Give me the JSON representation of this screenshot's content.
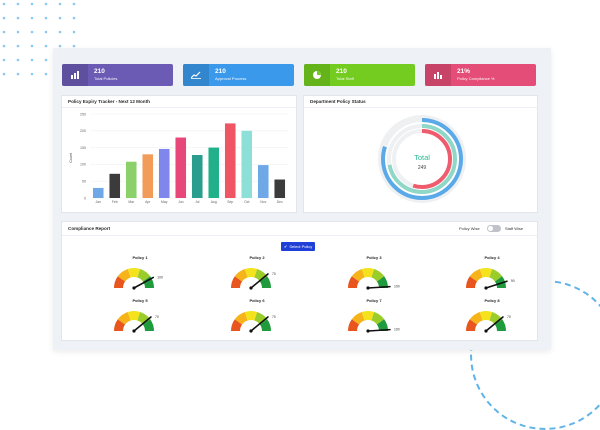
{
  "stats": [
    {
      "value": "210",
      "label": "Total Policies",
      "color": "#6b5bb5",
      "icon": "bar-chart-icon"
    },
    {
      "value": "210",
      "label": "Approval Process",
      "color": "#3a99ea",
      "icon": "trend-chart-icon"
    },
    {
      "value": "210",
      "label": "Total Staff",
      "color": "#73cc1f",
      "icon": "pie-chart-icon"
    },
    {
      "value": "21%",
      "label": "Policy Compliance %",
      "color": "#e44d77",
      "icon": "bar-chart-icon"
    }
  ],
  "expiry": {
    "title": "Policy Expiry Tracker - Next 12 Month",
    "chart_data": {
      "type": "bar",
      "categories": [
        "Jan",
        "Feb",
        "Mar",
        "Apr",
        "May",
        "Jun",
        "Jul",
        "Aug",
        "Sep",
        "Oct",
        "Nov",
        "Dec"
      ],
      "values": [
        30,
        72,
        108,
        130,
        146,
        180,
        128,
        150,
        222,
        200,
        98,
        55
      ],
      "colors": [
        "#6fa8e6",
        "#3b3b3b",
        "#8cd06a",
        "#f29c5a",
        "#7f86ec",
        "#e8477a",
        "#2a9d8f",
        "#20b08a",
        "#ef5563",
        "#8de0d8",
        "#6fa8e6",
        "#3b3b3b"
      ],
      "ylabel": "Count",
      "ylim": [
        0,
        250
      ],
      "yticks": [
        0,
        50,
        100,
        150,
        200,
        250
      ],
      "grid": true
    }
  },
  "department": {
    "title": "Department Policy Status",
    "center_label": "Total",
    "center_value": "249",
    "rings": [
      {
        "fraction": 0.8,
        "color": "#5aa9e8"
      },
      {
        "fraction": 0.72,
        "color": "#8fd8c8"
      },
      {
        "fraction": 0.55,
        "color": "#ef5c6e"
      }
    ]
  },
  "compliance": {
    "title": "Compliance Report",
    "toggle_left": "Policy Wise",
    "toggle_right": "Staff Wise",
    "select_button": "Select Policy",
    "gauges": [
      {
        "name": "Policy 1",
        "max_label": "100",
        "value": 0.84
      },
      {
        "name": "Policy 2",
        "max_label": "70",
        "value": 0.78
      },
      {
        "name": "Policy 3",
        "max_label": "100",
        "value": 0.98
      },
      {
        "name": "Policy 4",
        "max_label": "90",
        "value": 0.9
      },
      {
        "name": "Policy 5",
        "max_label": "70",
        "value": 0.78
      },
      {
        "name": "Policy 6",
        "max_label": "70",
        "value": 0.78
      },
      {
        "name": "Policy 7",
        "max_label": "100",
        "value": 0.98
      },
      {
        "name": "Policy 8",
        "max_label": "70",
        "value": 0.78
      }
    ]
  }
}
